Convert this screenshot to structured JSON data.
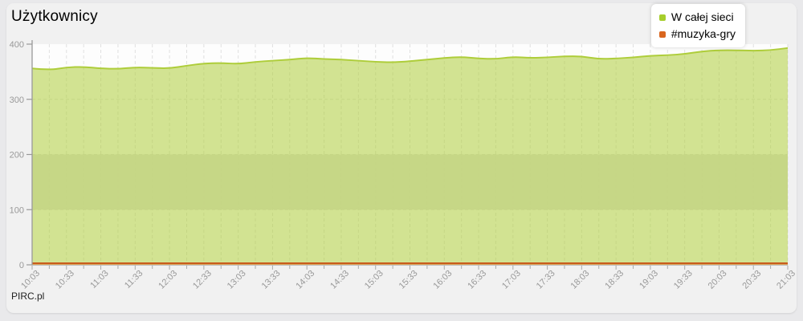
{
  "page": {
    "title": "Użytkownicy",
    "footer": "PIRC.pl"
  },
  "legend": {
    "position": "top-right",
    "items": [
      {
        "label": "W całej sieci",
        "color": "#a6ce2c"
      },
      {
        "label": "#muzyka-gry",
        "color": "#d9661f"
      }
    ]
  },
  "axes": {
    "y_tick_labels": [
      "0",
      "100",
      "200",
      "300",
      "400"
    ],
    "x_major_labels": [
      "10:03",
      "10:33",
      "11:03",
      "11:33",
      "12:03",
      "12:33",
      "13:03",
      "13:33",
      "14:03",
      "14:33",
      "15:03",
      "15:33",
      "16:03",
      "16:33",
      "17:03",
      "17:33",
      "18:03",
      "18:33",
      "19:03",
      "19:33",
      "20:03",
      "20:33",
      "21:03"
    ]
  },
  "chart_data": {
    "type": "area",
    "title": "Użytkownicy",
    "xlabel": "",
    "ylabel": "",
    "ylim": [
      0,
      400
    ],
    "yticks": [
      0,
      100,
      200,
      300,
      400
    ],
    "grid": true,
    "grid_style": "dashed",
    "legend_position": "top-right",
    "plot_band": {
      "from": 100,
      "to": 200,
      "color": "#e2e2e2"
    },
    "x": [
      "10:03",
      "10:18",
      "10:33",
      "10:48",
      "11:03",
      "11:18",
      "11:33",
      "11:48",
      "12:03",
      "12:18",
      "12:33",
      "12:48",
      "13:03",
      "13:18",
      "13:33",
      "13:48",
      "14:03",
      "14:18",
      "14:33",
      "14:48",
      "15:03",
      "15:18",
      "15:33",
      "15:48",
      "16:03",
      "16:18",
      "16:33",
      "16:48",
      "17:03",
      "17:18",
      "17:33",
      "17:48",
      "18:03",
      "18:18",
      "18:33",
      "18:48",
      "19:03",
      "19:18",
      "19:33",
      "19:48",
      "20:03",
      "20:18",
      "20:33",
      "20:48",
      "21:03"
    ],
    "x_labeled_every": 2,
    "series": [
      {
        "name": "W całej sieci",
        "line_color": "#aecd3a",
        "fill_color": "rgba(174,205,58,0.55)",
        "values": [
          356,
          353,
          358,
          359,
          356,
          355,
          358,
          357,
          356,
          361,
          365,
          366,
          364,
          368,
          370,
          372,
          375,
          373,
          372,
          370,
          368,
          367,
          369,
          372,
          375,
          377,
          374,
          373,
          377,
          375,
          376,
          378,
          378,
          373,
          374,
          376,
          379,
          380,
          382,
          387,
          389,
          389,
          388,
          389,
          393
        ]
      },
      {
        "name": "#muzyka-gry",
        "line_color": "#c85c1d",
        "fill_color": "rgba(230,115,40,0.55)",
        "values": [
          3,
          3,
          3,
          3,
          3,
          3,
          3,
          3,
          3,
          3,
          3,
          3,
          3,
          3,
          3,
          3,
          3,
          3,
          3,
          3,
          3,
          3,
          3,
          3,
          3,
          3,
          3,
          3,
          3,
          3,
          3,
          3,
          3,
          3,
          3,
          3,
          3,
          3,
          3,
          3,
          3,
          3,
          3,
          3,
          3
        ]
      }
    ],
    "colors": {
      "plot_background": "#fdfdfd",
      "gridline": "#e0e0e0",
      "axis_line": "#999999",
      "tick": "#aaaaaa",
      "tick_label": "#999999"
    }
  }
}
